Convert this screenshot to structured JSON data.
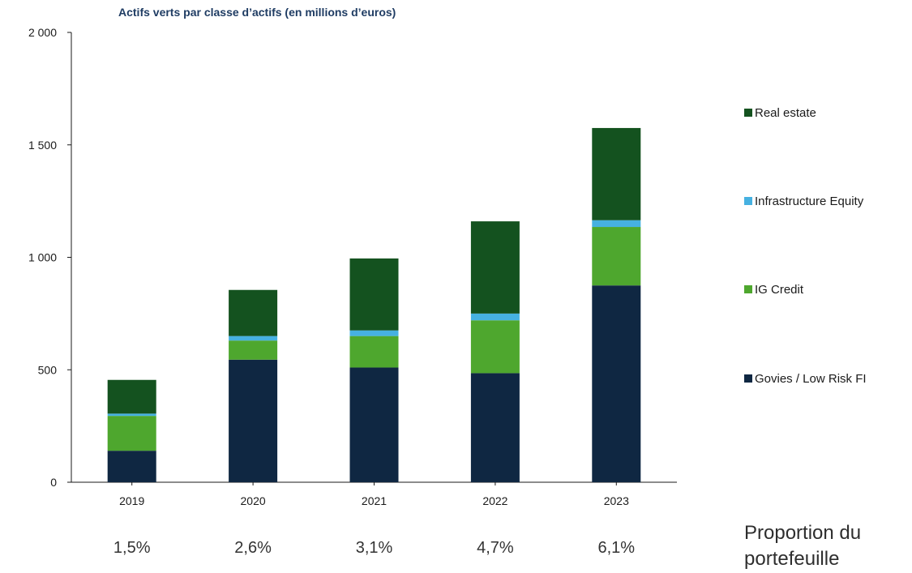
{
  "chart_data": {
    "type": "bar",
    "stacked": true,
    "title": "Actifs verts par classe d’actifs (en millions d’euros)",
    "xlabel": "",
    "ylabel": "",
    "categories": [
      "2019",
      "2020",
      "2021",
      "2022",
      "2023"
    ],
    "ylim": [
      0,
      2000
    ],
    "yticks": [
      0,
      500,
      1000,
      1500,
      2000
    ],
    "ytick_labels": [
      "0",
      "500",
      "1 000",
      "1 500",
      "2 000"
    ],
    "series": [
      {
        "name": "Govies / Low Risk FI",
        "color": "#0f2742",
        "values": [
          140,
          545,
          510,
          485,
          875
        ]
      },
      {
        "name": "IG Credit",
        "color": "#4ea72e",
        "values": [
          155,
          85,
          140,
          235,
          260
        ]
      },
      {
        "name": "Infrastructure Equity",
        "color": "#46b1e1",
        "values": [
          10,
          20,
          25,
          30,
          30
        ]
      },
      {
        "name": "Real estate",
        "color": "#14521f",
        "values": [
          150,
          205,
          320,
          410,
          410
        ]
      }
    ],
    "legend_position": "right",
    "grid": false,
    "proportions": [
      "1,5%",
      "2,6%",
      "3,1%",
      "4,7%",
      "6,1%"
    ],
    "proportion_label": "Proportion du portefeuille"
  }
}
